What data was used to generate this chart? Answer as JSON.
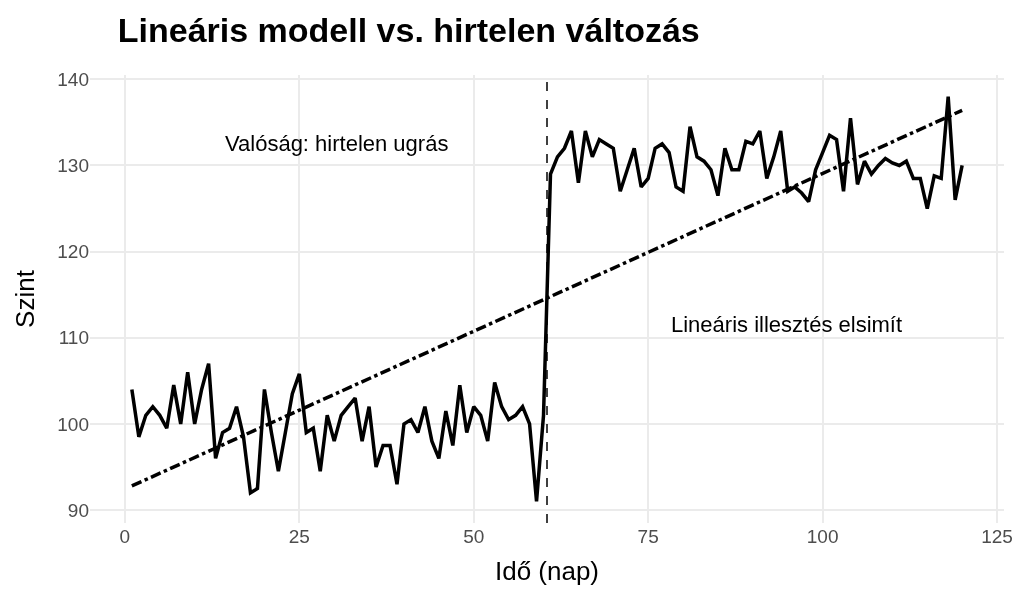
{
  "chart_data": {
    "type": "line",
    "title": "Lineáris modell vs. hirtelen változás",
    "xlabel": "Idő (nap)",
    "ylabel": "Szint",
    "xlim": [
      -5,
      126
    ],
    "ylim": [
      88.5,
      140.5
    ],
    "xticks": [
      0,
      25,
      50,
      75,
      100,
      125
    ],
    "yticks": [
      90,
      100,
      110,
      120,
      130,
      140
    ],
    "grid": true,
    "x": [
      1,
      2,
      3,
      4,
      5,
      6,
      7,
      8,
      9,
      10,
      11,
      12,
      13,
      14,
      15,
      16,
      17,
      18,
      19,
      20,
      21,
      22,
      23,
      24,
      25,
      26,
      27,
      28,
      29,
      30,
      31,
      32,
      33,
      34,
      35,
      36,
      37,
      38,
      39,
      40,
      41,
      42,
      43,
      44,
      45,
      46,
      47,
      48,
      49,
      50,
      51,
      52,
      53,
      54,
      55,
      56,
      57,
      58,
      59,
      60,
      61,
      62,
      63,
      64,
      65,
      66,
      67,
      68,
      69,
      70,
      71,
      72,
      73,
      74,
      75,
      76,
      77,
      78,
      79,
      80,
      81,
      82,
      83,
      84,
      85,
      86,
      87,
      88,
      89,
      90,
      91,
      92,
      93,
      94,
      95,
      96,
      97,
      98,
      99,
      100,
      101,
      102,
      103,
      104,
      105,
      106,
      107,
      108,
      109,
      110,
      111,
      112,
      113,
      114,
      115,
      116,
      117,
      118,
      119,
      120
    ],
    "series": [
      {
        "color": "#000000",
        "line_style": "solid",
        "values": [
          104,
          98.5,
          101,
          102,
          101,
          99.5,
          104.5,
          100,
          106,
          100,
          104,
          107,
          96,
          99,
          99.5,
          102,
          98.5,
          92,
          92.5,
          104,
          99,
          94.5,
          99,
          103.5,
          105.8,
          99,
          99.5,
          94.5,
          101,
          98,
          101,
          102,
          103,
          98,
          102,
          95,
          97.5,
          97.5,
          93,
          100,
          100.5,
          99,
          102,
          98,
          96,
          101.5,
          97.5,
          104.5,
          99,
          102,
          101,
          98,
          104.8,
          102,
          100.5,
          101,
          102,
          100,
          91,
          101,
          129,
          131,
          132,
          134,
          128,
          134,
          131,
          133,
          132.5,
          132,
          127,
          129.5,
          132,
          127.5,
          128.5,
          132,
          132.5,
          131.5,
          127.5,
          127,
          134.5,
          131,
          130.5,
          129.5,
          126.5,
          132,
          129.5,
          129.5,
          132.8,
          132.5,
          134,
          128.5,
          131,
          134,
          127,
          127.5,
          126.8,
          125.8,
          129.5,
          131.5,
          133.5,
          133,
          127,
          135.5,
          127.8,
          130.5,
          129,
          130,
          130.8,
          130.3,
          130,
          130.5,
          128.5,
          128.5,
          125,
          128.8,
          128.5,
          138,
          126,
          130
        ]
      },
      {
        "type": "line",
        "color": "#000000",
        "line_style": "dashdot",
        "x": [
          1,
          120
        ],
        "values": [
          92.8,
          136.4
        ]
      }
    ],
    "ref_lines": [
      {
        "axis": "x",
        "value": 60.5,
        "color": "#000000",
        "line_style": "dashed"
      }
    ],
    "annotations": [
      "Valóság: hirtelen ugrás",
      "Lineáris illesztés elsimít"
    ]
  }
}
